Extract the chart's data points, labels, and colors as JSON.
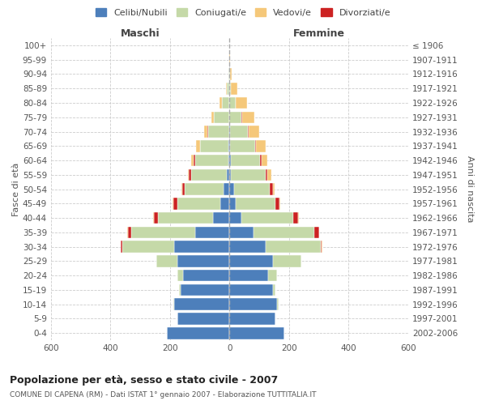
{
  "age_groups": [
    "0-4",
    "5-9",
    "10-14",
    "15-19",
    "20-24",
    "25-29",
    "30-34",
    "35-39",
    "40-44",
    "45-49",
    "50-54",
    "55-59",
    "60-64",
    "65-69",
    "70-74",
    "75-79",
    "80-84",
    "85-89",
    "90-94",
    "95-99",
    "100+"
  ],
  "birth_years": [
    "2002-2006",
    "1997-2001",
    "1992-1996",
    "1987-1991",
    "1982-1986",
    "1977-1981",
    "1972-1976",
    "1967-1971",
    "1962-1966",
    "1957-1961",
    "1952-1956",
    "1947-1951",
    "1942-1946",
    "1937-1941",
    "1932-1936",
    "1927-1931",
    "1922-1926",
    "1917-1921",
    "1912-1916",
    "1907-1911",
    "≤ 1906"
  ],
  "males": {
    "celibi": [
      210,
      175,
      185,
      165,
      155,
      175,
      185,
      115,
      55,
      30,
      20,
      8,
      5,
      3,
      2,
      2,
      0,
      0,
      0,
      0,
      0
    ],
    "coniugati": [
      0,
      0,
      5,
      5,
      20,
      70,
      175,
      215,
      185,
      145,
      130,
      120,
      110,
      95,
      70,
      50,
      25,
      8,
      3,
      1,
      0
    ],
    "vedovi": [
      0,
      0,
      0,
      0,
      0,
      0,
      2,
      2,
      2,
      2,
      3,
      5,
      8,
      12,
      12,
      10,
      10,
      4,
      1,
      0,
      0
    ],
    "divorziati": [
      0,
      0,
      0,
      0,
      0,
      0,
      5,
      12,
      15,
      15,
      10,
      8,
      5,
      2,
      2,
      0,
      0,
      0,
      0,
      0,
      0
    ]
  },
  "females": {
    "nubili": [
      185,
      155,
      160,
      145,
      130,
      145,
      120,
      80,
      40,
      20,
      15,
      5,
      3,
      2,
      2,
      0,
      0,
      0,
      0,
      0,
      0
    ],
    "coniugate": [
      0,
      0,
      5,
      8,
      30,
      95,
      185,
      205,
      175,
      135,
      120,
      115,
      100,
      85,
      60,
      40,
      20,
      5,
      2,
      0,
      0
    ],
    "vedove": [
      0,
      0,
      0,
      0,
      0,
      0,
      2,
      2,
      2,
      3,
      5,
      12,
      20,
      30,
      35,
      40,
      40,
      20,
      5,
      1,
      0
    ],
    "divorziate": [
      0,
      0,
      0,
      0,
      0,
      2,
      5,
      15,
      15,
      12,
      10,
      8,
      5,
      3,
      2,
      2,
      0,
      0,
      0,
      0,
      0
    ]
  },
  "colors": {
    "celibi_nubili": "#4d7fbb",
    "coniugati": "#c5d9a8",
    "vedovi": "#f5c87a",
    "divorziati": "#cc2222"
  },
  "title": "Popolazione per età, sesso e stato civile - 2007",
  "subtitle": "COMUNE DI CAPENA (RM) - Dati ISTAT 1° gennaio 2007 - Elaborazione TUTTITALIA.IT",
  "xlabel_left": "Maschi",
  "xlabel_right": "Femmine",
  "ylabel_left": "Fasce di età",
  "ylabel_right": "Anni di nascita",
  "xlim": 600,
  "legend_labels": [
    "Celibi/Nubili",
    "Coniugati/e",
    "Vedovi/e",
    "Divorziati/e"
  ],
  "background_color": "#ffffff",
  "bar_height": 0.82
}
